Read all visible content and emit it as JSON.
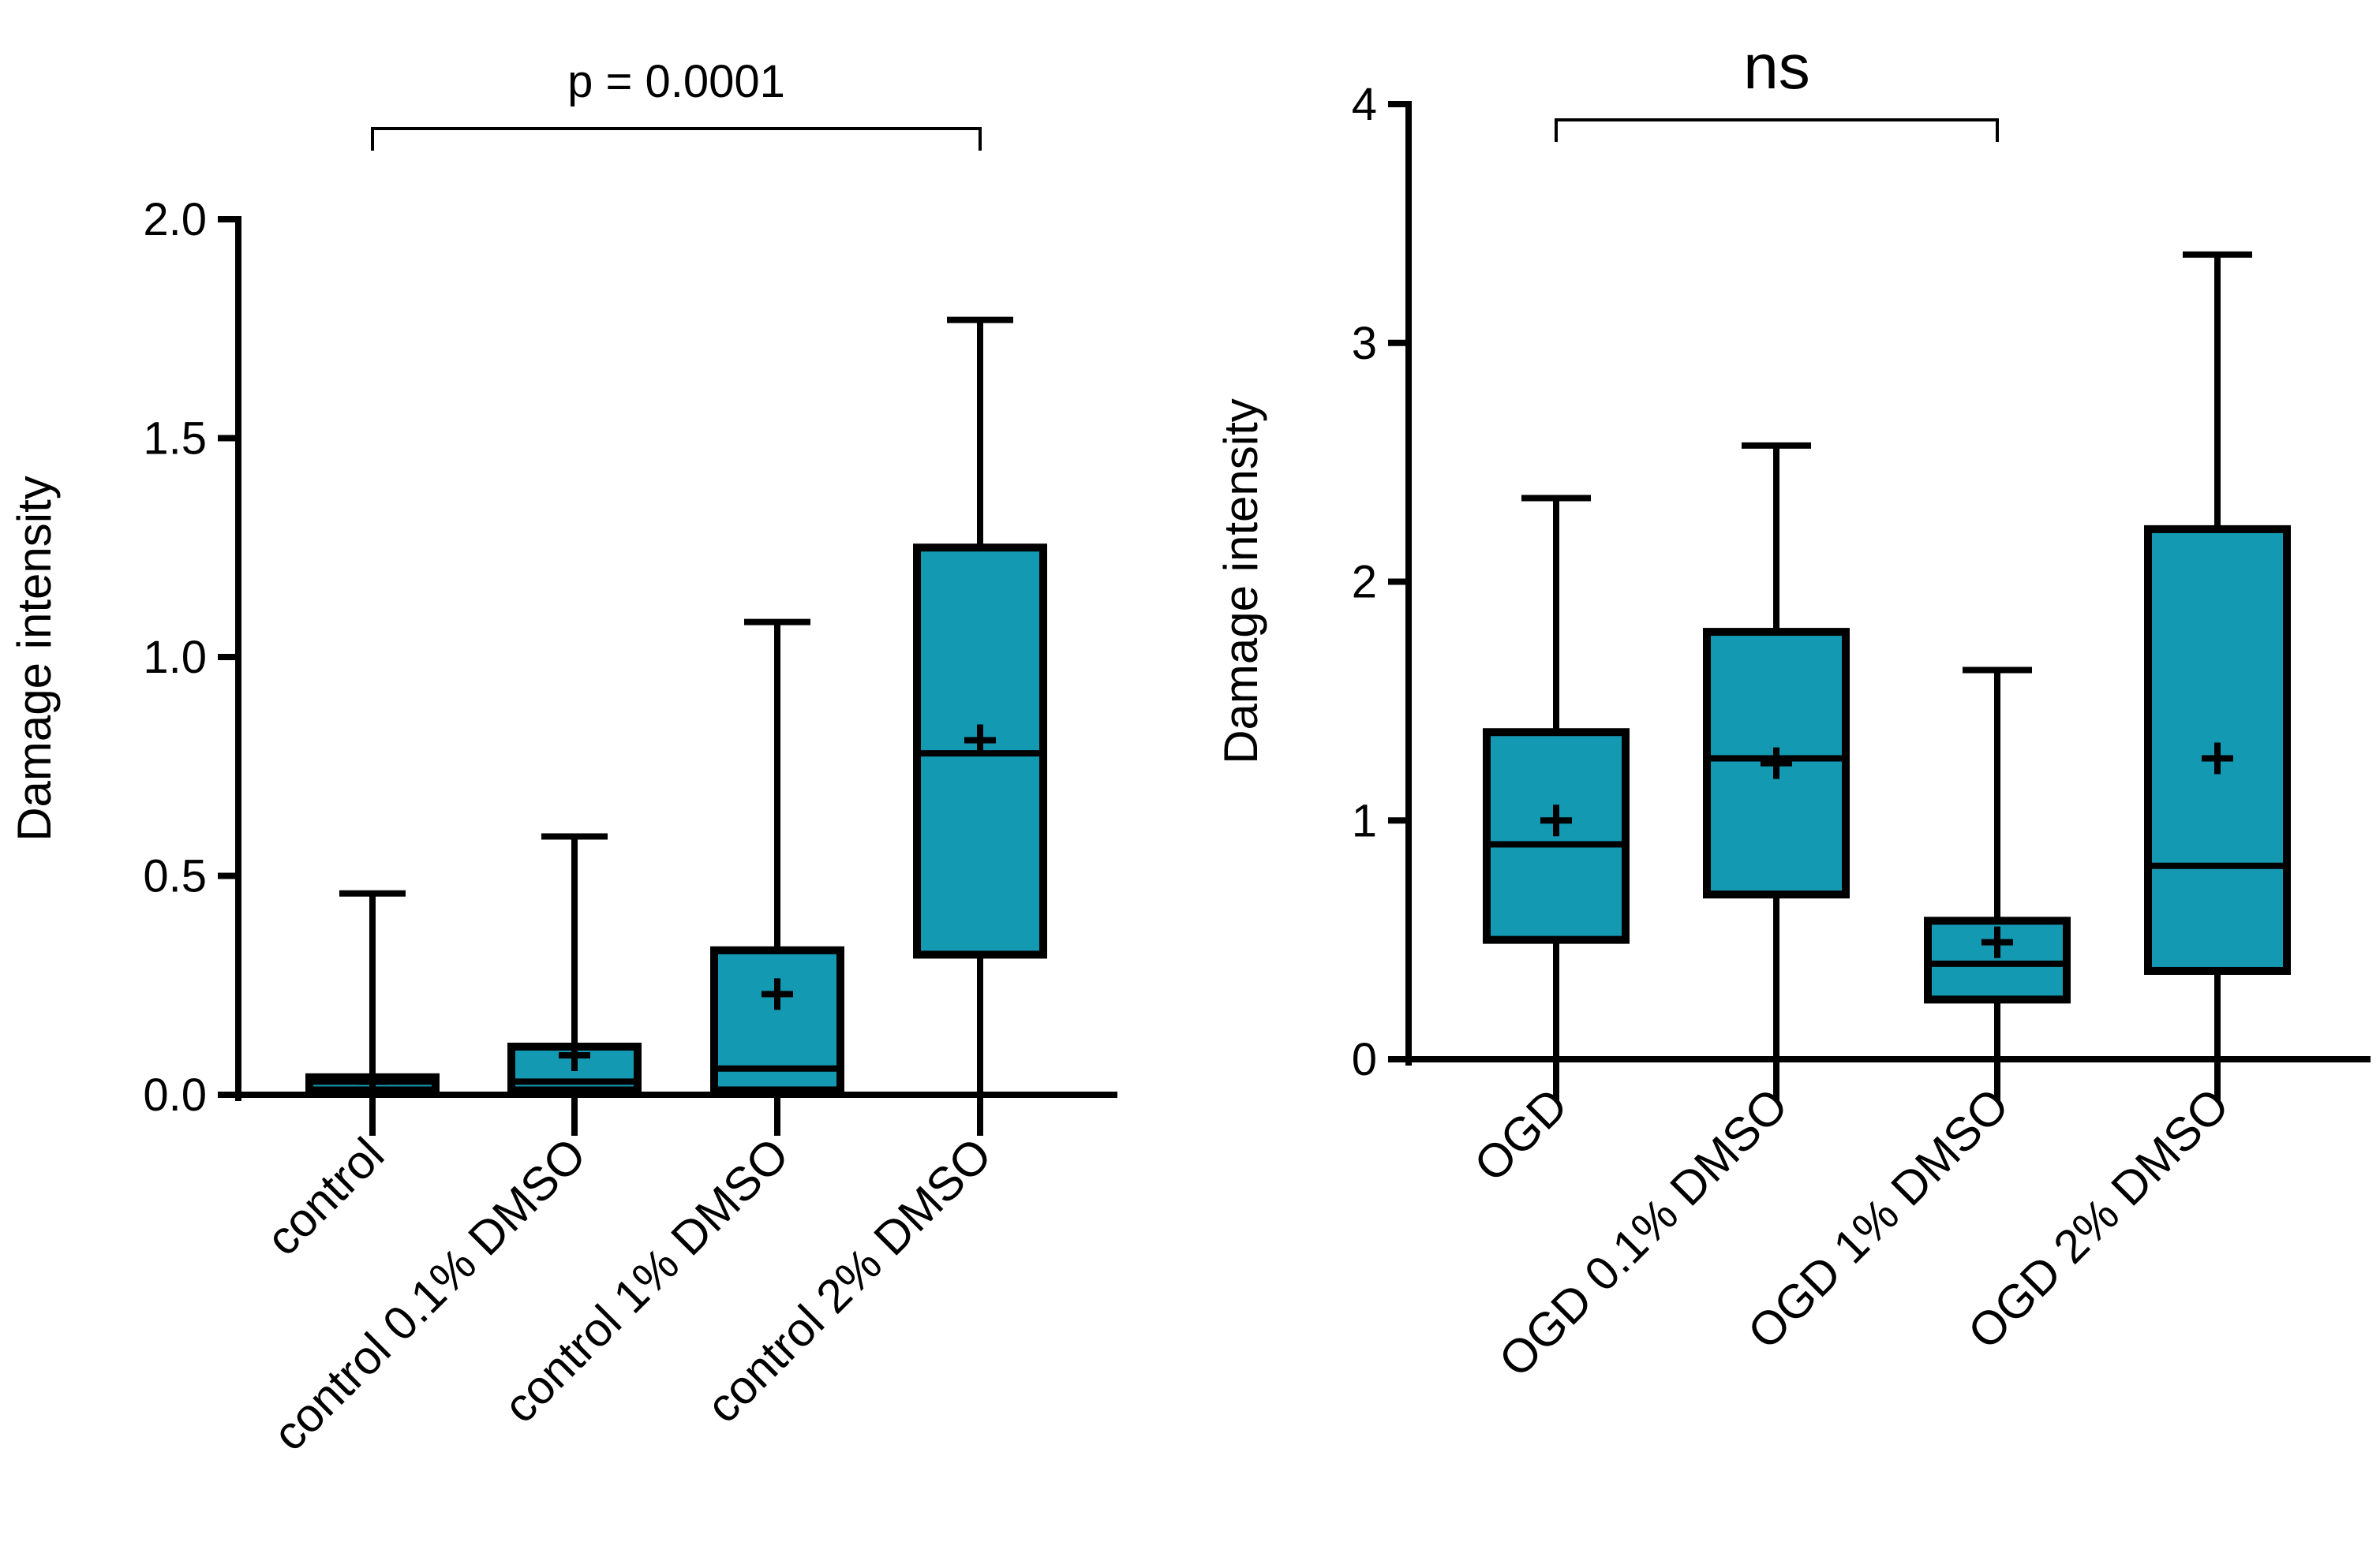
{
  "chart_data": [
    {
      "type": "box",
      "ylabel": "Damage intensity",
      "ylim": [
        0,
        2.0
      ],
      "yticks": [
        "0.0",
        "0.5",
        "1.0",
        "1.5",
        "2.0"
      ],
      "categories": [
        "control",
        "control 0.1% DMSO",
        "control 1% DMSO",
        "control 2% DMSO"
      ],
      "boxes": [
        {
          "min": 0.0,
          "q1": 0.01,
          "median": 0.03,
          "q3": 0.04,
          "max": 0.46,
          "mean": 0.03
        },
        {
          "min": 0.0,
          "q1": 0.01,
          "median": 0.03,
          "q3": 0.11,
          "max": 0.59,
          "mean": 0.09
        },
        {
          "min": 0.0,
          "q1": 0.01,
          "median": 0.06,
          "q3": 0.33,
          "max": 1.08,
          "mean": 0.23
        },
        {
          "min": 0.0,
          "q1": 0.32,
          "median": 0.78,
          "q3": 1.25,
          "max": 1.77,
          "mean": 0.81
        }
      ],
      "significance": {
        "from": 0,
        "to": 3,
        "label": "p = 0.0001"
      },
      "fill_color": "#1499b3"
    },
    {
      "type": "box",
      "ylabel": "Damage intensity",
      "ylim": [
        0,
        4
      ],
      "yticks": [
        "0",
        "1",
        "2",
        "3",
        "4"
      ],
      "categories": [
        "OGD",
        "OGD 0.1% DMSO",
        "OGD 1% DMSO",
        "OGD 2% DMSO"
      ],
      "boxes": [
        {
          "min": 0.0,
          "q1": 0.5,
          "median": 0.9,
          "q3": 1.37,
          "max": 2.35,
          "mean": 1.0
        },
        {
          "min": 0.0,
          "q1": 0.69,
          "median": 1.26,
          "q3": 1.79,
          "max": 2.57,
          "mean": 1.24
        },
        {
          "min": 0.0,
          "q1": 0.25,
          "median": 0.4,
          "q3": 0.58,
          "max": 1.63,
          "mean": 0.49
        },
        {
          "min": 0.0,
          "q1": 0.37,
          "median": 0.81,
          "q3": 2.22,
          "max": 3.37,
          "mean": 1.26
        }
      ],
      "significance": {
        "from": 0,
        "to": 2,
        "label": "ns"
      },
      "fill_color": "#1499b3"
    }
  ]
}
